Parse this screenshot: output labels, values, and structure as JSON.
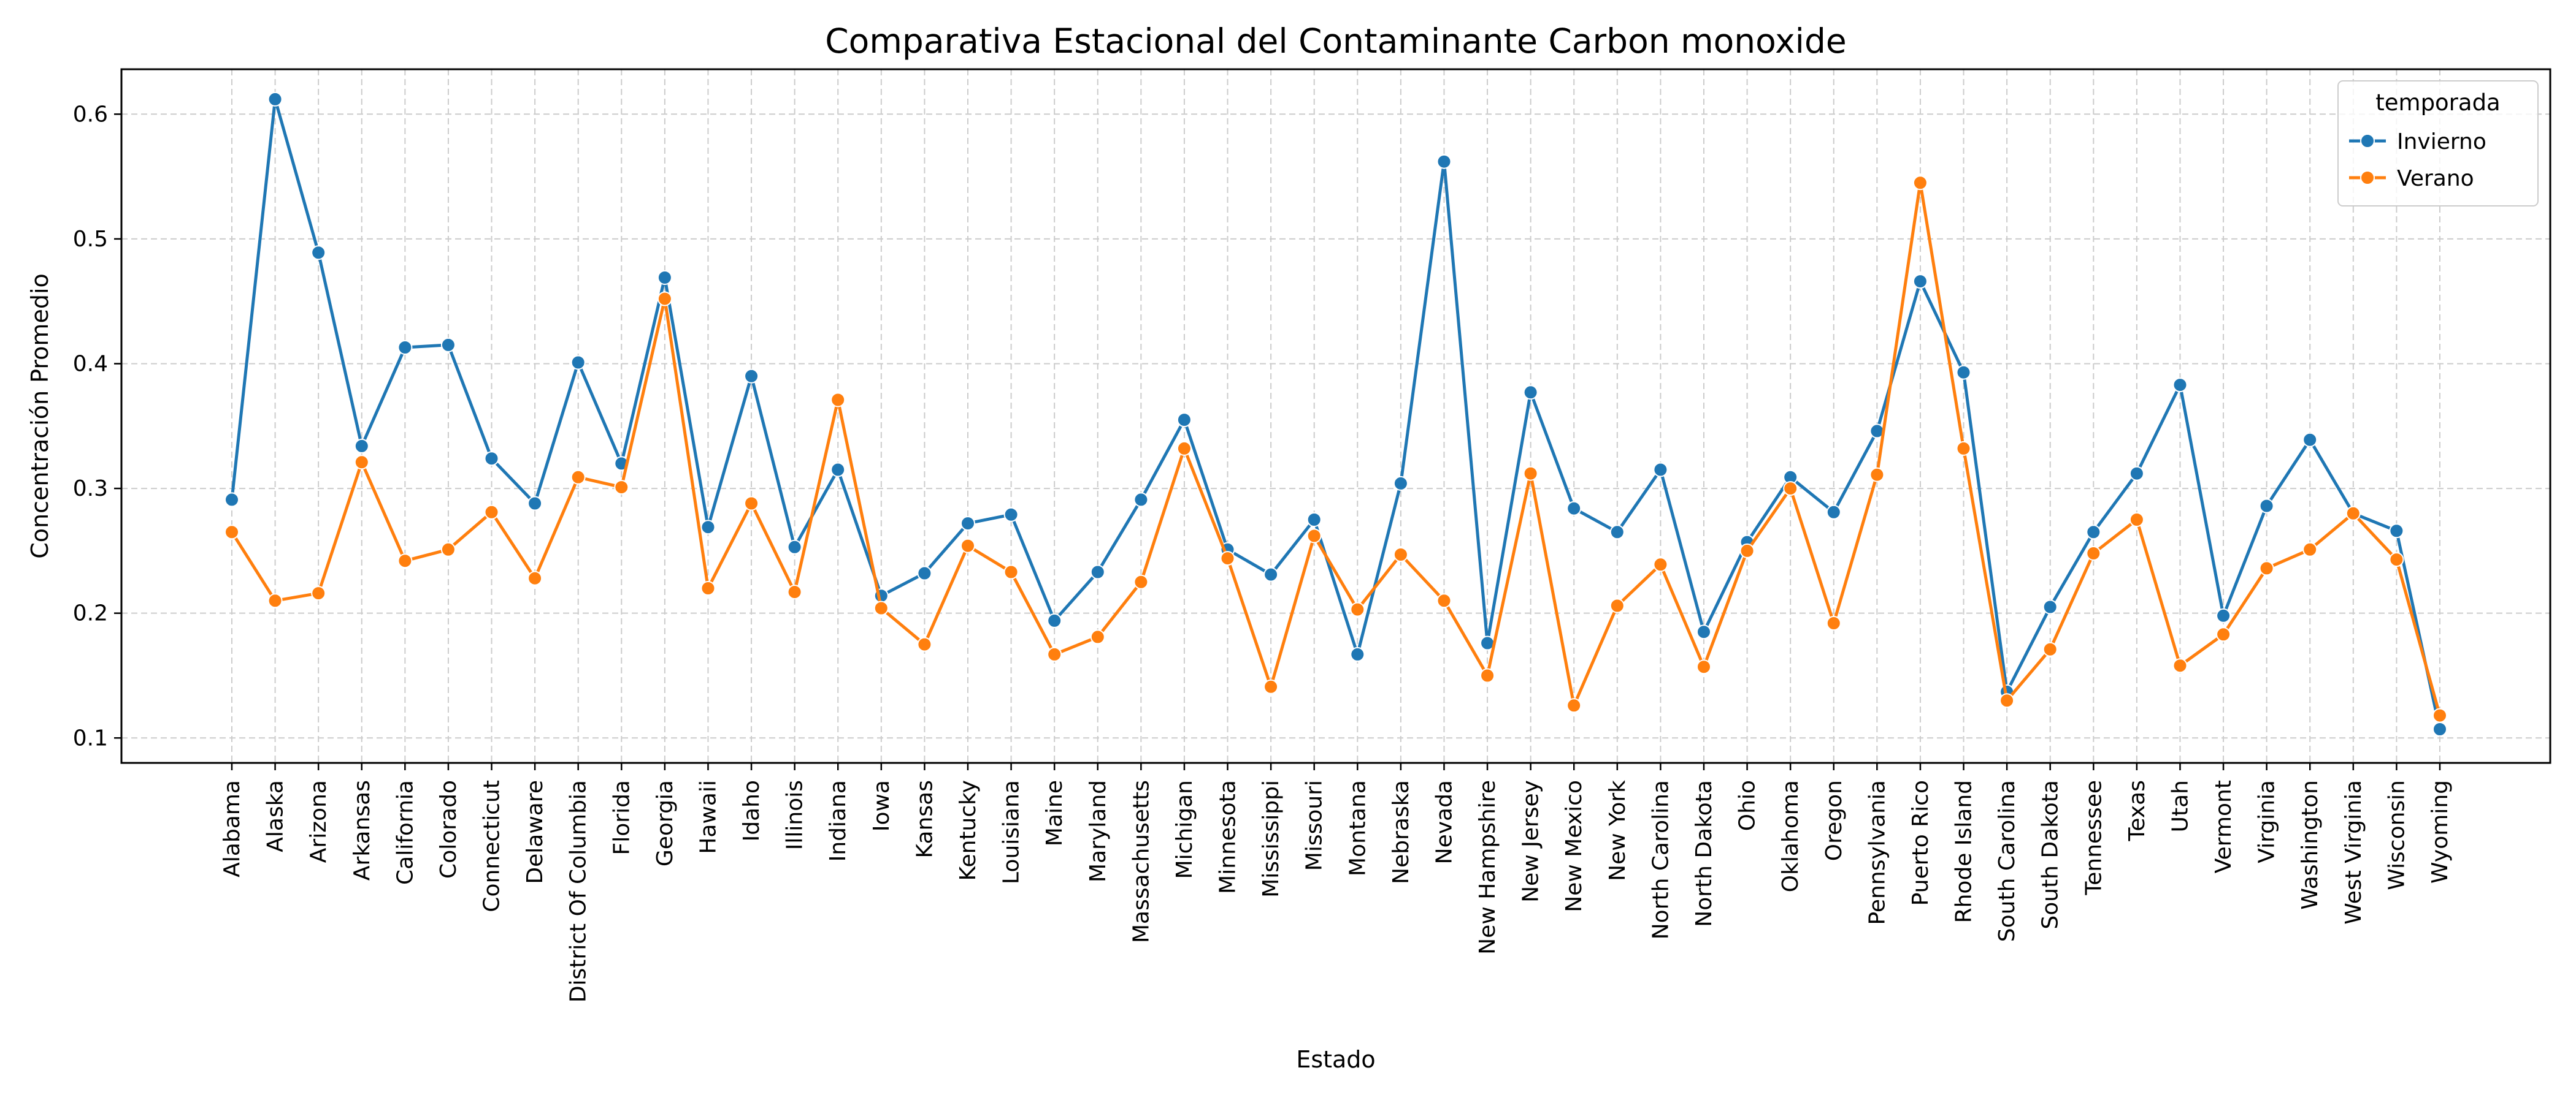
{
  "chart_data": {
    "type": "line",
    "title": "Comparativa Estacional del Contaminante Carbon monoxide",
    "xlabel": "Estado",
    "ylabel": "Concentración Promedio",
    "ylim": [
      0.08,
      0.636
    ],
    "yticks": [
      0.1,
      0.2,
      0.3,
      0.4,
      0.5,
      0.6
    ],
    "ytick_labels": [
      "0.1",
      "0.2",
      "0.3",
      "0.4",
      "0.5",
      "0.6"
    ],
    "grid": true,
    "legend": {
      "title": "temporada",
      "placement": "top-right"
    },
    "categories": [
      "Alabama",
      "Alaska",
      "Arizona",
      "Arkansas",
      "California",
      "Colorado",
      "Connecticut",
      "Delaware",
      "District Of Columbia",
      "Florida",
      "Georgia",
      "Hawaii",
      "Idaho",
      "Illinois",
      "Indiana",
      "Iowa",
      "Kansas",
      "Kentucky",
      "Louisiana",
      "Maine",
      "Maryland",
      "Massachusetts",
      "Michigan",
      "Minnesota",
      "Mississippi",
      "Missouri",
      "Montana",
      "Nebraska",
      "Nevada",
      "New Hampshire",
      "New Jersey",
      "New Mexico",
      "New York",
      "North Carolina",
      "North Dakota",
      "Ohio",
      "Oklahoma",
      "Oregon",
      "Pennsylvania",
      "Puerto Rico",
      "Rhode Island",
      "South Carolina",
      "South Dakota",
      "Tennessee",
      "Texas",
      "Utah",
      "Vermont",
      "Virginia",
      "Washington",
      "West Virginia",
      "Wisconsin",
      "Wyoming"
    ],
    "series": [
      {
        "name": "Invierno",
        "color": "#1f77b4",
        "values": [
          0.291,
          0.612,
          0.489,
          0.334,
          0.413,
          0.415,
          0.324,
          0.288,
          0.401,
          0.32,
          0.469,
          0.269,
          0.39,
          0.253,
          0.315,
          0.214,
          0.232,
          0.272,
          0.279,
          0.194,
          0.233,
          0.291,
          0.355,
          0.251,
          0.231,
          0.275,
          0.167,
          0.304,
          0.562,
          0.176,
          0.377,
          0.284,
          0.265,
          0.315,
          0.185,
          0.257,
          0.309,
          0.281,
          0.346,
          0.466,
          0.393,
          0.137,
          0.205,
          0.265,
          0.312,
          0.383,
          0.198,
          0.286,
          0.339,
          0.28,
          0.266,
          0.107
        ]
      },
      {
        "name": "Verano",
        "color": "#ff7f0e",
        "values": [
          0.265,
          0.21,
          0.216,
          0.321,
          0.242,
          0.251,
          0.281,
          0.228,
          0.309,
          0.301,
          0.452,
          0.22,
          0.288,
          0.217,
          0.371,
          0.204,
          0.175,
          0.254,
          0.233,
          0.167,
          0.181,
          0.225,
          0.332,
          0.244,
          0.141,
          0.262,
          0.203,
          0.247,
          0.21,
          0.15,
          0.312,
          0.126,
          0.206,
          0.239,
          0.157,
          0.25,
          0.3,
          0.192,
          0.311,
          0.545,
          0.332,
          0.13,
          0.171,
          0.248,
          0.275,
          0.158,
          0.183,
          0.236,
          0.251,
          0.28,
          0.243,
          0.118
        ]
      }
    ]
  }
}
